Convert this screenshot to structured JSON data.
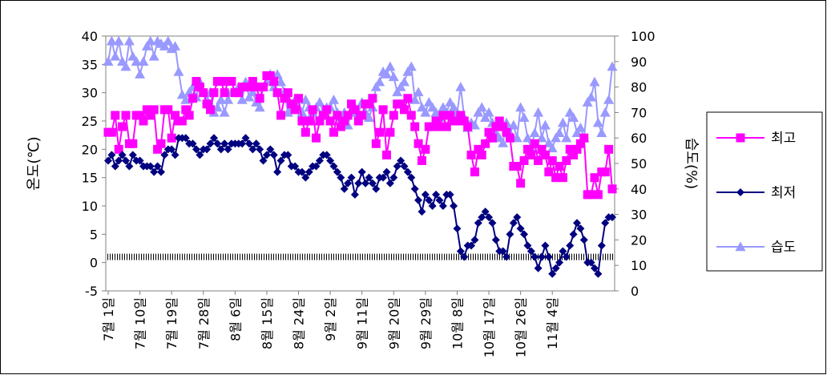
{
  "chart_data": {
    "type": "line",
    "title": "",
    "ylabel_left": "온도(℃)",
    "ylabel_right": "습도(%)",
    "ylim_left": [
      -5,
      40
    ],
    "yticks_left": [
      -5,
      0,
      5,
      10,
      15,
      20,
      25,
      30,
      35,
      40
    ],
    "ylim_right": [
      0,
      100
    ],
    "yticks_right": [
      0,
      10,
      20,
      30,
      40,
      50,
      60,
      70,
      80,
      90,
      100
    ],
    "x_tick_labels": [
      "7월 1일",
      "7월 10일",
      "7월 19일",
      "7월 28일",
      "8월 6일",
      "8월 15일",
      "8월 24일",
      "9월 2일",
      "9월 11일",
      "9월 20일",
      "9월 29일",
      "10월 8일",
      "10월 17일",
      "10월 26일",
      "11월 4일"
    ],
    "tick_step_days": 9,
    "grid": false,
    "legend_position": "right",
    "series": [
      {
        "name": "최고",
        "axis": "left",
        "color": "#ff00ff",
        "marker": "square",
        "values": [
          23,
          23,
          26,
          20,
          24,
          26,
          21,
          21,
          26,
          26,
          25,
          27,
          26,
          27,
          20,
          21,
          27,
          27,
          22,
          26,
          25,
          25,
          27,
          26,
          29,
          32,
          31,
          30,
          28,
          27,
          30,
          32,
          32,
          30,
          32,
          32,
          30,
          30,
          31,
          31,
          31,
          32,
          31,
          29,
          31,
          33,
          33,
          32,
          30,
          26,
          29,
          30,
          28,
          27,
          29,
          25,
          23,
          25,
          27,
          22,
          25,
          26,
          27,
          25,
          23,
          26,
          24,
          25,
          26,
          28,
          27,
          25,
          26,
          28,
          28,
          29,
          21,
          23,
          27,
          19,
          23,
          26,
          28,
          28,
          27,
          29,
          26,
          24,
          21,
          18,
          20,
          24,
          24,
          25,
          24,
          26,
          24,
          26,
          25,
          25,
          26,
          25,
          24,
          19,
          16,
          20,
          19,
          21,
          23,
          22,
          24,
          25,
          24,
          23,
          22,
          17,
          17,
          14,
          18,
          20,
          19,
          21,
          18,
          20,
          19,
          16,
          18,
          15,
          17,
          15,
          18,
          20,
          19,
          20,
          21,
          22,
          12,
          12,
          15,
          12,
          16,
          16,
          20,
          13
        ],
        "values_note": "daily maximum temperature (℃)"
      },
      {
        "name": "최저",
        "axis": "left",
        "color": "#000080",
        "marker": "diamond",
        "values": [
          18,
          19,
          17,
          18,
          19,
          18,
          17,
          19,
          18,
          18,
          17,
          17,
          17,
          16,
          17,
          16,
          19,
          20,
          20,
          19,
          22,
          22,
          22,
          21,
          21,
          20,
          19,
          20,
          20,
          21,
          22,
          21,
          20,
          21,
          20,
          21,
          21,
          21,
          21,
          22,
          21,
          20,
          21,
          20,
          18,
          19,
          20,
          19,
          16,
          18,
          19,
          19,
          17,
          17,
          16,
          16,
          15,
          16,
          17,
          17,
          18,
          19,
          19,
          18,
          17,
          16,
          15,
          13,
          14,
          15,
          12,
          14,
          16,
          14,
          15,
          14,
          13,
          15,
          15,
          16,
          14,
          15,
          17,
          18,
          17,
          16,
          15,
          13,
          11,
          9,
          12,
          11,
          10,
          12,
          11,
          10,
          12,
          12,
          10,
          6,
          2,
          1,
          3,
          3,
          4,
          7,
          8,
          9,
          8,
          7,
          4,
          2,
          2,
          1,
          5,
          7,
          8,
          6,
          5,
          3,
          2,
          1,
          -1,
          1,
          3,
          1,
          -2,
          -1,
          0,
          2,
          1,
          3,
          5,
          7,
          6,
          4,
          0,
          0,
          -1,
          -2,
          3,
          7,
          8,
          8
        ],
        "values_note": "daily minimum temperature (℃)"
      },
      {
        "name": "습도",
        "axis": "right",
        "color": "#9999ff",
        "marker": "triangle",
        "values": [
          90,
          98,
          92,
          98,
          90,
          88,
          98,
          92,
          90,
          85,
          90,
          96,
          98,
          92,
          98,
          97,
          96,
          98,
          95,
          96,
          86,
          77,
          75,
          78,
          80,
          76,
          82,
          78,
          75,
          78,
          70,
          72,
          75,
          70,
          75,
          78,
          78,
          80,
          75,
          82,
          76,
          78,
          74,
          72,
          80,
          82,
          85,
          80,
          85,
          82,
          78,
          70,
          72,
          75,
          72,
          70,
          75,
          72,
          70,
          72,
          74,
          70,
          72,
          72,
          75,
          70,
          68,
          70,
          65,
          70,
          72,
          70,
          74,
          70,
          68,
          72,
          80,
          82,
          86,
          85,
          88,
          84,
          78,
          80,
          82,
          86,
          88,
          75,
          78,
          72,
          70,
          74,
          72,
          70,
          68,
          72,
          70,
          74,
          72,
          70,
          80,
          68,
          64,
          66,
          65,
          70,
          72,
          68,
          70,
          66,
          62,
          60,
          58,
          66,
          62,
          65,
          60,
          72,
          68,
          60,
          56,
          62,
          70,
          60,
          65,
          58,
          56,
          60,
          62,
          66,
          60,
          70,
          68,
          62,
          64,
          60,
          74,
          76,
          82,
          66,
          62,
          70,
          75,
          88
        ],
        "values_note": "daily relative humidity (%)"
      }
    ],
    "threshold_line": {
      "axis": "left",
      "value": 1,
      "style": "dashed"
    }
  }
}
